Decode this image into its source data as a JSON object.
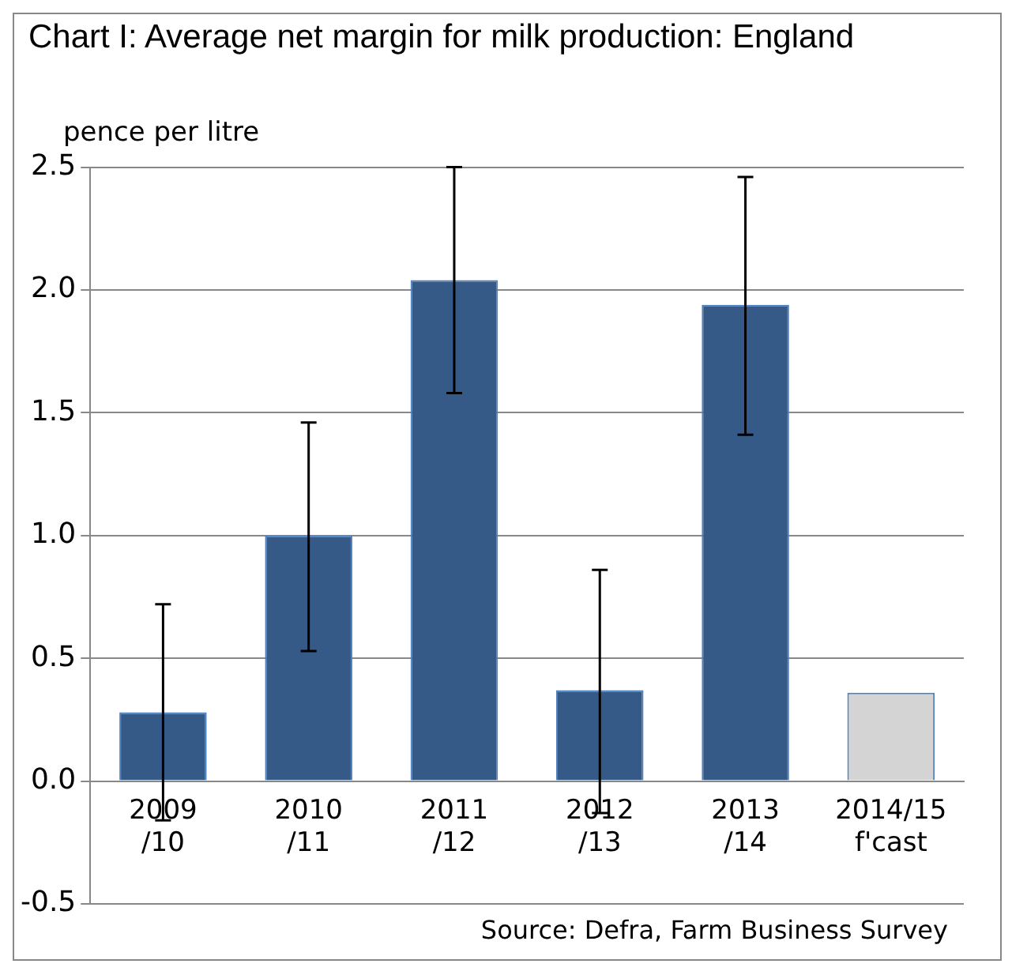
{
  "chart_data": {
    "type": "bar",
    "title": "Chart I: Average net margin for milk production: England",
    "ylabel": "pence per litre",
    "categories": [
      "2009 /10",
      "2010 /11",
      "2011 /12",
      "2012 /13",
      "2013 /14",
      "2014/15 f'cast"
    ],
    "values": [
      0.28,
      1.0,
      2.04,
      0.37,
      1.94,
      0.36
    ],
    "colors": [
      "#365a88",
      "#365a88",
      "#365a88",
      "#365a88",
      "#365a88",
      "#d4d4d4"
    ],
    "errors": [
      [
        -0.16,
        0.72
      ],
      [
        0.53,
        1.46
      ],
      [
        1.58,
        2.5
      ],
      [
        -0.13,
        0.86
      ],
      [
        1.41,
        2.46
      ],
      null
    ],
    "ylim": [
      -0.5,
      2.5
    ],
    "yticks": [
      {
        "value": -0.5,
        "label": "-0.5"
      },
      {
        "value": 0,
        "label": "0.0"
      },
      {
        "value": 0.5,
        "label": "0.5"
      },
      {
        "value": 1,
        "label": "1.0"
      },
      {
        "value": 1.5,
        "label": "1.5"
      },
      {
        "value": 2,
        "label": "2.0"
      },
      {
        "value": 2.5,
        "label": "2.5"
      }
    ],
    "grid": "y",
    "legend": false,
    "annotations": [
      "Source: Defra, Farm Business Survey"
    ]
  }
}
